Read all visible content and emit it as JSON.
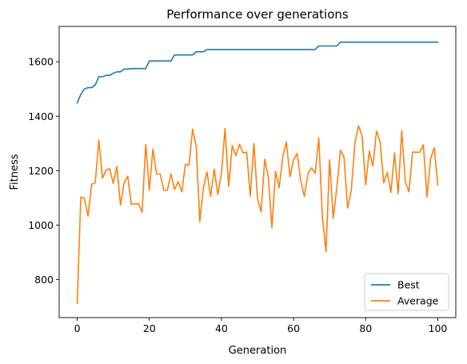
{
  "chart_data": {
    "type": "line",
    "title": "Performance over generations",
    "xlabel": "Generation",
    "ylabel": "Fitness",
    "xlim": [
      -5,
      105
    ],
    "ylim": [
      660,
      1730
    ],
    "xticks": [
      0,
      20,
      40,
      60,
      80,
      100
    ],
    "yticks": [
      800,
      1000,
      1200,
      1400,
      1600
    ],
    "grid": false,
    "legend": "lower-right",
    "series": [
      {
        "name": "Best",
        "color": "#1f77b4",
        "x": [
          0,
          1,
          2,
          3,
          4,
          5,
          6,
          7,
          8,
          9,
          10,
          11,
          12,
          13,
          14,
          15,
          16,
          17,
          18,
          19,
          20,
          21,
          22,
          23,
          24,
          25,
          26,
          27,
          28,
          29,
          30,
          31,
          32,
          33,
          34,
          35,
          36,
          37,
          38,
          39,
          40,
          41,
          42,
          43,
          44,
          45,
          46,
          47,
          48,
          49,
          50,
          51,
          52,
          53,
          54,
          55,
          56,
          57,
          58,
          59,
          60,
          61,
          62,
          63,
          64,
          65,
          66,
          67,
          68,
          69,
          70,
          71,
          72,
          73,
          74,
          75,
          76,
          77,
          78,
          79,
          80,
          81,
          82,
          83,
          84,
          85,
          86,
          87,
          88,
          89,
          90,
          91,
          92,
          93,
          94,
          95,
          96,
          97,
          98,
          99,
          100
        ],
        "values": [
          1449,
          1480,
          1500,
          1505,
          1505,
          1515,
          1545,
          1545,
          1550,
          1550,
          1558,
          1563,
          1563,
          1573,
          1573,
          1575,
          1575,
          1575,
          1575,
          1575,
          1603,
          1603,
          1603,
          1603,
          1603,
          1603,
          1603,
          1625,
          1625,
          1625,
          1625,
          1625,
          1625,
          1637,
          1637,
          1637,
          1645,
          1645,
          1645,
          1645,
          1645,
          1645,
          1645,
          1645,
          1645,
          1645,
          1645,
          1645,
          1645,
          1645,
          1645,
          1645,
          1645,
          1645,
          1645,
          1645,
          1645,
          1645,
          1645,
          1645,
          1645,
          1645,
          1645,
          1645,
          1645,
          1645,
          1645,
          1658,
          1658,
          1658,
          1658,
          1658,
          1658,
          1672,
          1672,
          1672,
          1672,
          1672,
          1672,
          1672,
          1672,
          1672,
          1672,
          1672,
          1672,
          1672,
          1672,
          1672,
          1672,
          1672,
          1672,
          1672,
          1672,
          1672,
          1672,
          1672,
          1672,
          1672,
          1672,
          1672,
          1672
        ]
      },
      {
        "name": "Average",
        "color": "#ff7f0e",
        "x": [
          0,
          1,
          2,
          3,
          4,
          5,
          6,
          7,
          8,
          9,
          10,
          11,
          12,
          13,
          14,
          15,
          16,
          17,
          18,
          19,
          20,
          21,
          22,
          23,
          24,
          25,
          26,
          27,
          28,
          29,
          30,
          31,
          32,
          33,
          34,
          35,
          36,
          37,
          38,
          39,
          40,
          41,
          42,
          43,
          44,
          45,
          46,
          47,
          48,
          49,
          50,
          51,
          52,
          53,
          54,
          55,
          56,
          57,
          58,
          59,
          60,
          61,
          62,
          63,
          64,
          65,
          66,
          67,
          68,
          69,
          70,
          71,
          72,
          73,
          74,
          75,
          76,
          77,
          78,
          79,
          80,
          81,
          82,
          83,
          84,
          85,
          86,
          87,
          88,
          89,
          90,
          91,
          92,
          93,
          94,
          95,
          96,
          97,
          98,
          99,
          100
        ],
        "values": [
          712,
          1103,
          1098,
          1033,
          1150,
          1155,
          1312,
          1172,
          1202,
          1207,
          1153,
          1215,
          1073,
          1155,
          1180,
          1077,
          1078,
          1078,
          1048,
          1296,
          1128,
          1280,
          1188,
          1188,
          1128,
          1128,
          1188,
          1131,
          1160,
          1122,
          1223,
          1220,
          1352,
          1290,
          1013,
          1137,
          1195,
          1105,
          1205,
          1112,
          1190,
          1355,
          1142,
          1292,
          1255,
          1297,
          1265,
          1268,
          1106,
          1300,
          1097,
          1048,
          1242,
          1175,
          990,
          1197,
          1137,
          1250,
          1305,
          1178,
          1240,
          1263,
          1162,
          1105,
          1190,
          1210,
          1190,
          1320,
          1030,
          902,
          1240,
          1025,
          1138,
          1276,
          1250,
          1062,
          1127,
          1300,
          1365,
          1328,
          1148,
          1272,
          1217,
          1345,
          1307,
          1155,
          1193,
          1120,
          1265,
          1115,
          1347,
          1160,
          1122,
          1268,
          1268,
          1267,
          1295,
          1103,
          1242,
          1285,
          1148
        ]
      }
    ]
  }
}
